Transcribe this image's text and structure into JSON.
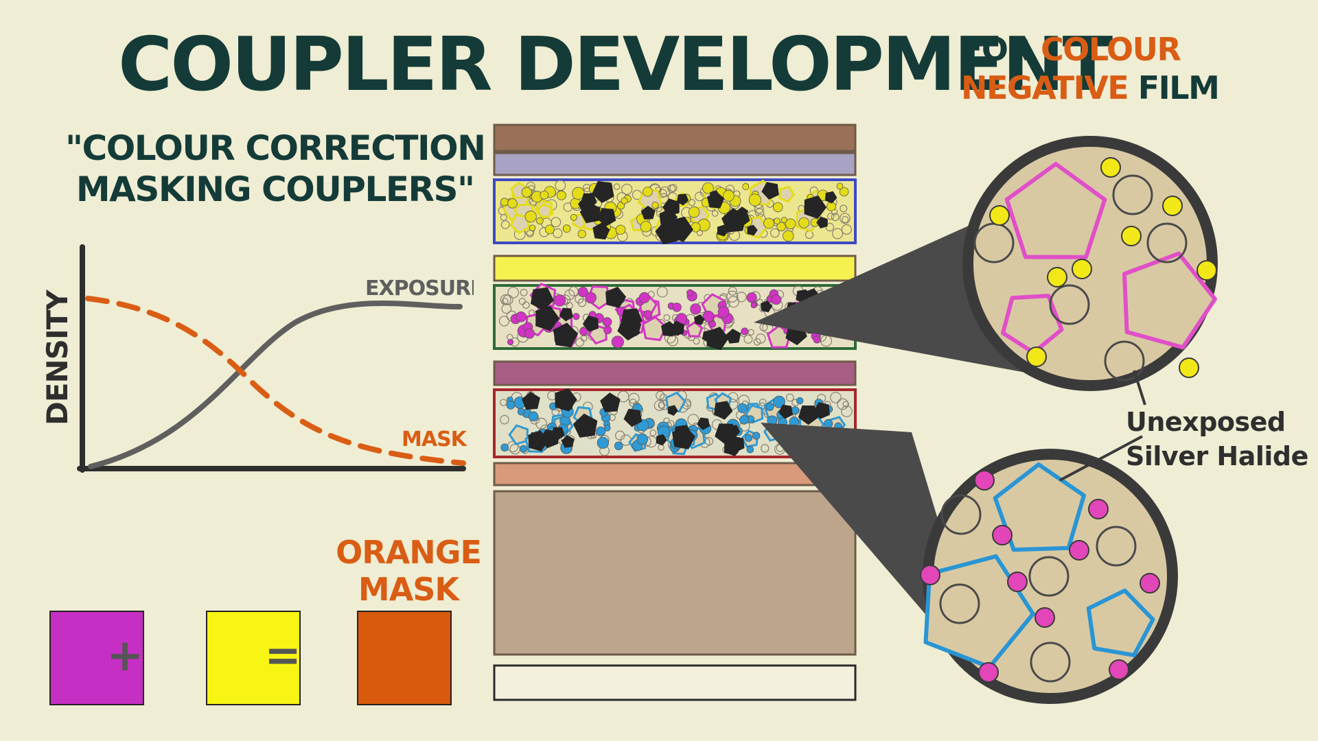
{
  "title": "COUPLER DEVELOPMENT",
  "subtitle": {
    "for": "FOR",
    "colour": "COLOUR",
    "negative": "NEGATIVE",
    "film": "FILM"
  },
  "quote": {
    "line1": "\"COLOUR CORRECTION",
    "line2": "MASKING COUPLERS\""
  },
  "graph": {
    "y_axis_label": "DENSITY",
    "curve_exposure_label": "EXPOSURE",
    "curve_mask_label": "MASK",
    "exposure_color": "#5f5f5f",
    "mask_color": "#d95d14"
  },
  "orange_mask": {
    "heading_line1": "ORANGE",
    "heading_line2": "MASK",
    "equation": [
      {
        "kind": "swatch",
        "color": "#c62fc4"
      },
      {
        "kind": "operator",
        "text": "+"
      },
      {
        "kind": "swatch",
        "color": "#f8f514"
      },
      {
        "kind": "operator",
        "text": "="
      },
      {
        "kind": "swatch",
        "color": "#d95a0c"
      }
    ]
  },
  "film_layers": [
    {
      "name": "top-coat",
      "color": "#9a7058"
    },
    {
      "name": "uv-filter",
      "color": "#a8a3c4"
    },
    {
      "name": "blue-sensitive-emulsion",
      "color": "#ece690",
      "border": "#3d49c4",
      "grain": "#e4dc18"
    },
    {
      "name": "yellow-filter",
      "color": "#f5f14f"
    },
    {
      "name": "green-sensitive-emulsion",
      "color": "#e7e0c3",
      "border": "#2d6a36",
      "grain": "#d234c4"
    },
    {
      "name": "inter-layer",
      "color": "#a75d84"
    },
    {
      "name": "red-sensitive-emulsion",
      "color": "#dfe0c7",
      "border": "#a8262c",
      "grain": "#2f9ad4"
    },
    {
      "name": "anti-halation",
      "color": "#d99a7c"
    },
    {
      "name": "base",
      "color": "#bda58c"
    },
    {
      "name": "backing",
      "color": "#f3f1de"
    }
  ],
  "magnifier_top": {
    "pentagon_color": "#e04fc8",
    "dot_color": "#f2e817"
  },
  "magnifier_bottom": {
    "pentagon_color": "#2a95d4",
    "dot_color": "#e246b8"
  },
  "callout": {
    "line1": "Unexposed",
    "line2": "Silver Halide"
  }
}
